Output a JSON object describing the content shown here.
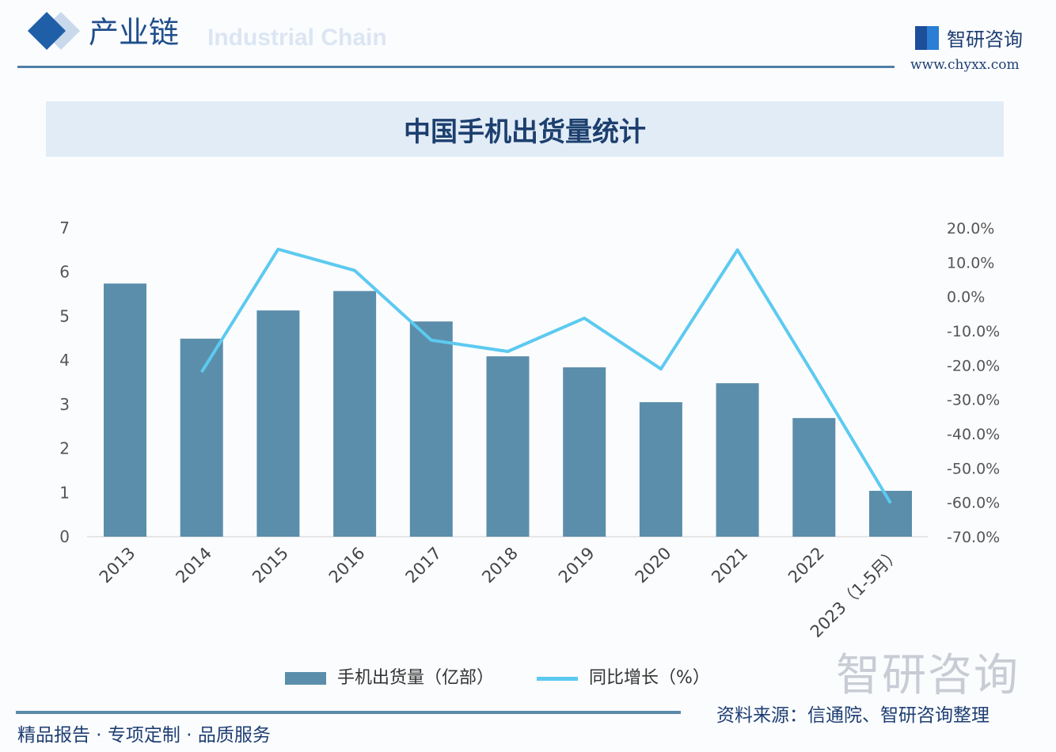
{
  "header": {
    "section_title": "产业链",
    "section_subtitle": "Industrial Chain",
    "brand": "智研咨询",
    "url": "www.chyxx.com"
  },
  "chart_data": {
    "type": "bar+line",
    "title": "中国手机出货量统计",
    "categories": [
      "2013",
      "2014",
      "2015",
      "2016",
      "2017",
      "2018",
      "2019",
      "2020",
      "2021",
      "2022",
      "2023（1-5月）"
    ],
    "series": [
      {
        "name": "手机出货量（亿部）",
        "type": "bar",
        "axis": "left",
        "color": "#5b8eab",
        "values": [
          5.74,
          4.49,
          5.13,
          5.57,
          4.88,
          4.09,
          3.84,
          3.05,
          3.48,
          2.69,
          1.04
        ]
      },
      {
        "name": "同比增长（%）",
        "type": "line",
        "axis": "right",
        "color": "#5ccaf0",
        "values": [
          null,
          -22.0,
          13.8,
          7.6,
          -12.7,
          -16.0,
          -6.3,
          -21.1,
          13.6,
          -23.0,
          -60.2
        ]
      }
    ],
    "left_axis": {
      "ylim": [
        0,
        7
      ],
      "ticks": [
        "0",
        "1",
        "2",
        "3",
        "4",
        "5",
        "6",
        "7"
      ]
    },
    "right_axis": {
      "ylim": [
        -70,
        20
      ],
      "ticks": [
        "-70.0%",
        "-60.0%",
        "-50.0%",
        "-40.0%",
        "-30.0%",
        "-20.0%",
        "-10.0%",
        "0.0%",
        "10.0%",
        "20.0%"
      ]
    },
    "grid": false,
    "legend": "bottom"
  },
  "legend": {
    "bar_label": "手机出货量（亿部）",
    "line_label": "同比增长（%）"
  },
  "footer": {
    "watermark": "智研咨询",
    "source": "资料来源：信通院、智研咨询整理",
    "slogan": "精品报告 · 专项定制 · 品质服务"
  }
}
